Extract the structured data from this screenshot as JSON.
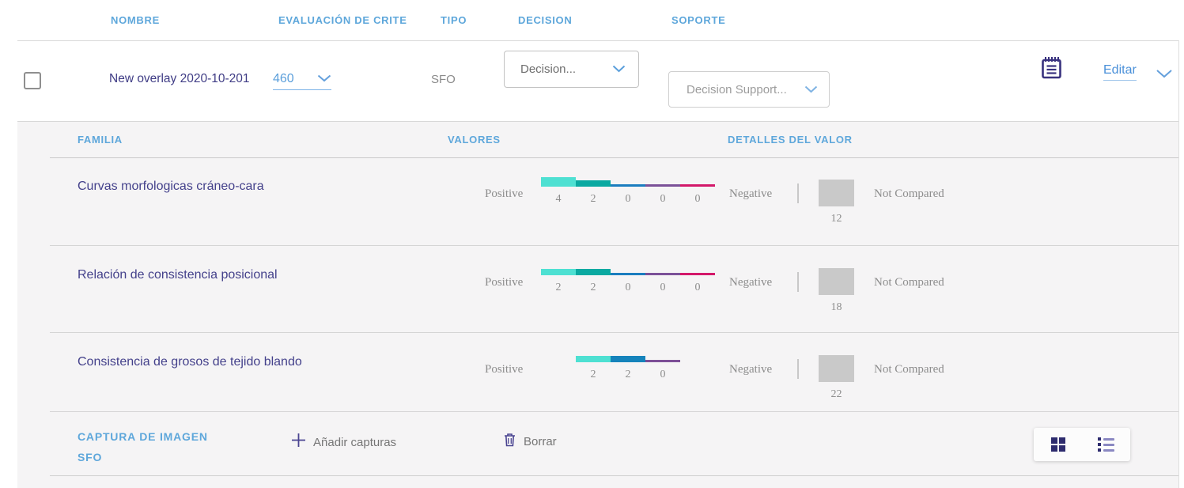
{
  "colors": {
    "header_blue": "#5ea7db",
    "indigo_text": "#3f3c85",
    "link_blue": "#4a90d9",
    "gray_text": "#8a8a8a",
    "panel_bg": "#f5f4f5",
    "negative_box_gray": "#c9c9c9"
  },
  "main_table": {
    "columns": [
      "NOMBRE",
      "EVALUACIÓN DE CRITE",
      "TIPO",
      "DECISION",
      "SOPORTE"
    ],
    "row": {
      "name": "New overlay 2020-10-201",
      "evaluacion_value": "460",
      "tipo": "SFO",
      "decision_placeholder": "Decision...",
      "soporte_placeholder": "Decision Support...",
      "editar_label": "Editar"
    }
  },
  "detail_table": {
    "columns": [
      "FAMILIA",
      "VALORES",
      "DETALLES DEL VALOR"
    ],
    "rows": [
      {
        "familia": "Curvas morfologicas cráneo-cara",
        "positive_label": "Positive",
        "negative_label": "Negative",
        "negative_count": "12",
        "detail_label": "Not Compared",
        "bars": [
          {
            "value": "4",
            "color": "#4ee0d2"
          },
          {
            "value": "2",
            "color": "#0aa9a1"
          },
          {
            "value": "0",
            "color": "#1b7dbf"
          },
          {
            "value": "0",
            "color": "#7b5198"
          },
          {
            "value": "0",
            "color": "#d3186a"
          }
        ]
      },
      {
        "familia": "Relación de consistencia posicional",
        "positive_label": "Positive",
        "negative_label": "Negative",
        "negative_count": "18",
        "detail_label": "Not Compared",
        "bars": [
          {
            "value": "2",
            "color": "#4ee0d2"
          },
          {
            "value": "2",
            "color": "#0aa9a1"
          },
          {
            "value": "0",
            "color": "#1b7dbf"
          },
          {
            "value": "0",
            "color": "#7b5198"
          },
          {
            "value": "0",
            "color": "#d3186a"
          }
        ]
      },
      {
        "familia": "Consistencia de grosos de tejido blando",
        "positive_label": "Positive",
        "negative_label": "Negative",
        "negative_count": "22",
        "detail_label": "Not Compared",
        "bars": [
          {
            "value": "2",
            "color": "#4ee0d2"
          },
          {
            "value": "2",
            "color": "#1583bb"
          },
          {
            "value": "0",
            "color": "#7d4f97"
          }
        ]
      }
    ]
  },
  "capture_section": {
    "title_line1": "CAPTURA DE IMAGEN",
    "title_line2": "SFO",
    "add_label": "Añadir capturas",
    "delete_label": "Borrar"
  }
}
